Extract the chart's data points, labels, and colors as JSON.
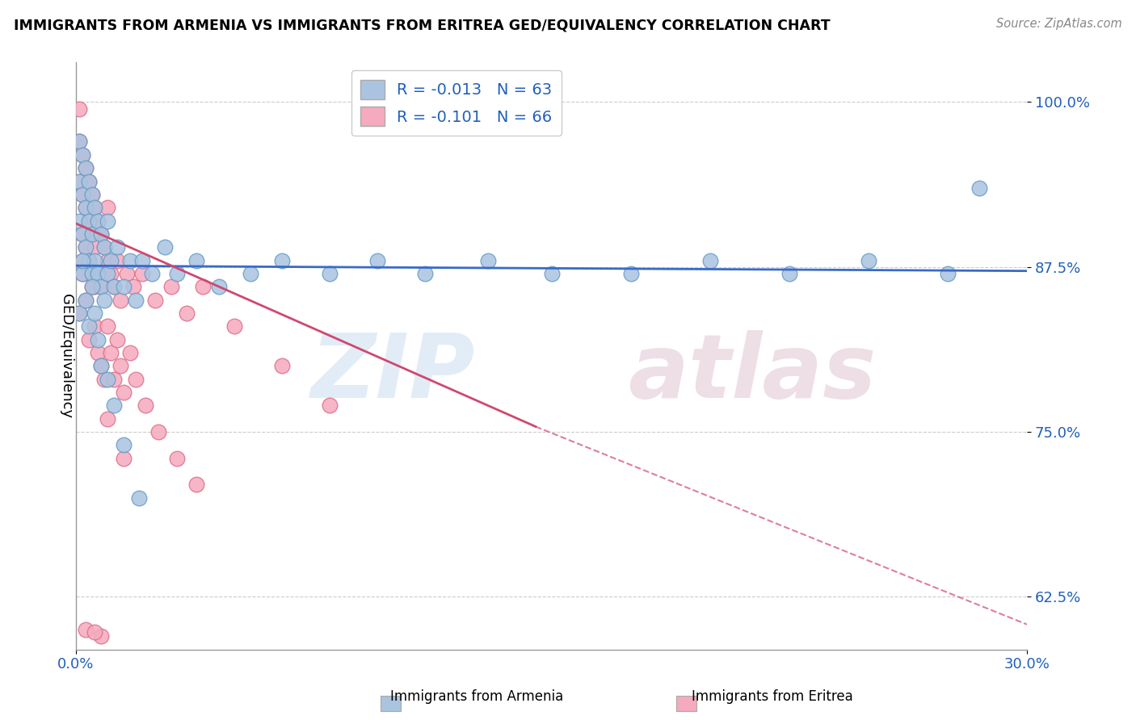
{
  "title": "IMMIGRANTS FROM ARMENIA VS IMMIGRANTS FROM ERITREA GED/EQUIVALENCY CORRELATION CHART",
  "source": "Source: ZipAtlas.com",
  "ylabel": "GED/Equivalency",
  "xlim": [
    0.0,
    0.3
  ],
  "ylim": [
    0.585,
    1.03
  ],
  "yticks": [
    0.625,
    0.75,
    0.875,
    1.0
  ],
  "ytick_labels": [
    "62.5%",
    "75.0%",
    "87.5%",
    "100.0%"
  ],
  "xtick_labels": [
    "0.0%",
    "30.0%"
  ],
  "xticks": [
    0.0,
    0.3
  ],
  "legend_r1": "-0.013",
  "legend_n1": "63",
  "legend_r2": "-0.101",
  "legend_n2": "66",
  "armenia_color": "#aac4e0",
  "eritrea_color": "#f5aabf",
  "armenia_edge": "#6a9ec8",
  "eritrea_edge": "#e0708a",
  "trend_armenia_color": "#3a6ac8",
  "trend_eritrea_color": "#d04870",
  "armenia_x": [
    0.001,
    0.001,
    0.001,
    0.002,
    0.002,
    0.002,
    0.002,
    0.003,
    0.003,
    0.003,
    0.004,
    0.004,
    0.004,
    0.005,
    0.005,
    0.005,
    0.006,
    0.006,
    0.007,
    0.007,
    0.008,
    0.008,
    0.009,
    0.009,
    0.01,
    0.01,
    0.011,
    0.012,
    0.013,
    0.015,
    0.017,
    0.019,
    0.021,
    0.024,
    0.028,
    0.032,
    0.038,
    0.045,
    0.055,
    0.065,
    0.08,
    0.095,
    0.11,
    0.13,
    0.15,
    0.175,
    0.2,
    0.225,
    0.25,
    0.275,
    0.001,
    0.002,
    0.003,
    0.004,
    0.005,
    0.006,
    0.007,
    0.008,
    0.01,
    0.012,
    0.015,
    0.02,
    0.285
  ],
  "armenia_y": [
    0.97,
    0.94,
    0.91,
    0.96,
    0.93,
    0.9,
    0.87,
    0.95,
    0.92,
    0.89,
    0.94,
    0.91,
    0.88,
    0.93,
    0.9,
    0.87,
    0.92,
    0.88,
    0.91,
    0.87,
    0.9,
    0.86,
    0.89,
    0.85,
    0.91,
    0.87,
    0.88,
    0.86,
    0.89,
    0.86,
    0.88,
    0.85,
    0.88,
    0.87,
    0.89,
    0.87,
    0.88,
    0.86,
    0.87,
    0.88,
    0.87,
    0.88,
    0.87,
    0.88,
    0.87,
    0.87,
    0.88,
    0.87,
    0.88,
    0.87,
    0.84,
    0.88,
    0.85,
    0.83,
    0.86,
    0.84,
    0.82,
    0.8,
    0.79,
    0.77,
    0.74,
    0.7,
    0.935
  ],
  "eritrea_x": [
    0.001,
    0.001,
    0.001,
    0.002,
    0.002,
    0.002,
    0.002,
    0.003,
    0.003,
    0.003,
    0.004,
    0.004,
    0.004,
    0.005,
    0.005,
    0.005,
    0.006,
    0.006,
    0.006,
    0.007,
    0.007,
    0.008,
    0.008,
    0.009,
    0.01,
    0.01,
    0.011,
    0.012,
    0.013,
    0.014,
    0.016,
    0.018,
    0.021,
    0.025,
    0.03,
    0.035,
    0.04,
    0.05,
    0.065,
    0.08,
    0.001,
    0.002,
    0.003,
    0.004,
    0.005,
    0.006,
    0.007,
    0.008,
    0.009,
    0.01,
    0.011,
    0.012,
    0.013,
    0.014,
    0.015,
    0.017,
    0.019,
    0.022,
    0.026,
    0.032,
    0.038,
    0.015,
    0.01,
    0.003,
    0.008,
    0.006
  ],
  "eritrea_y": [
    0.995,
    0.97,
    0.94,
    0.96,
    0.93,
    0.9,
    0.87,
    0.95,
    0.92,
    0.89,
    0.94,
    0.91,
    0.88,
    0.93,
    0.9,
    0.87,
    0.92,
    0.89,
    0.86,
    0.91,
    0.87,
    0.9,
    0.86,
    0.89,
    0.92,
    0.88,
    0.87,
    0.86,
    0.88,
    0.85,
    0.87,
    0.86,
    0.87,
    0.85,
    0.86,
    0.84,
    0.86,
    0.83,
    0.8,
    0.77,
    0.84,
    0.88,
    0.85,
    0.82,
    0.86,
    0.83,
    0.81,
    0.8,
    0.79,
    0.83,
    0.81,
    0.79,
    0.82,
    0.8,
    0.78,
    0.81,
    0.79,
    0.77,
    0.75,
    0.73,
    0.71,
    0.73,
    0.76,
    0.6,
    0.595,
    0.598
  ],
  "trend_arm_x0": 0.0,
  "trend_arm_x1": 0.3,
  "trend_arm_y0": 0.876,
  "trend_arm_y1": 0.872,
  "trend_eri_x0": 0.0,
  "trend_eri_x1": 0.145,
  "trend_eri_y0": 0.908,
  "trend_eri_y1": 0.754,
  "trend_eri_dash_x0": 0.145,
  "trend_eri_dash_x1": 0.3,
  "trend_eri_dash_y0": 0.754,
  "trend_eri_dash_y1": 0.604
}
